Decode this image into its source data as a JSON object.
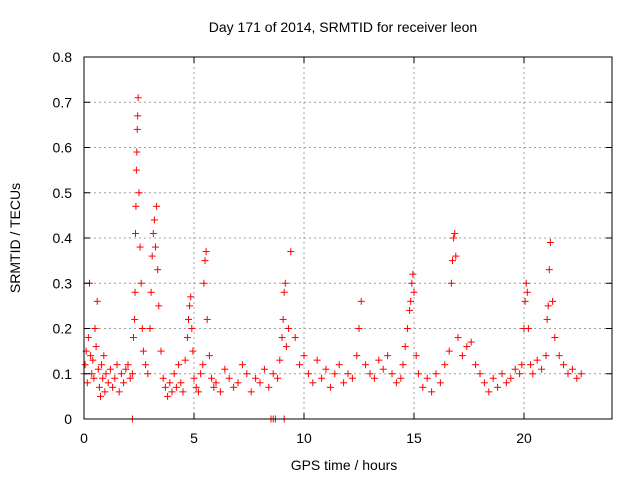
{
  "chart_data": {
    "type": "scatter",
    "title": "Day 171 of 2014, SRMTID for receiver leon",
    "xlabel": "GPS time / hours",
    "ylabel": "SRMTID / TECUs",
    "xlim": [
      0,
      24.0
    ],
    "ylim": [
      0,
      0.8
    ],
    "xticks": [
      0,
      5,
      10,
      15,
      20
    ],
    "xtick_labels": [
      "0",
      "5",
      "10",
      "15",
      "20"
    ],
    "yticks": [
      0,
      0.1,
      0.2,
      0.3,
      0.4,
      0.5,
      0.6,
      0.7,
      0.8
    ],
    "ytick_labels": [
      "0",
      "0.1",
      "0.2",
      "0.3",
      "0.4",
      "0.5",
      "0.6",
      "0.7",
      "0.8"
    ],
    "grid": true,
    "marker": "plus",
    "color": "#ff0000",
    "series": [
      {
        "name": "SRMTID",
        "x": [
          0.0,
          0.05,
          0.1,
          0.15,
          0.2,
          0.25,
          0.3,
          0.35,
          0.4,
          0.45,
          0.5,
          0.55,
          0.6,
          0.65,
          0.7,
          0.75,
          0.8,
          0.85,
          0.9,
          0.95,
          1.0,
          1.1,
          1.2,
          1.3,
          1.4,
          1.5,
          1.6,
          1.7,
          1.8,
          1.9,
          2.0,
          2.1,
          2.2,
          2.25,
          2.3,
          2.32,
          2.34,
          2.36,
          2.38,
          2.4,
          2.42,
          2.44,
          2.46,
          2.5,
          2.55,
          2.6,
          2.65,
          2.7,
          2.8,
          2.9,
          3.0,
          3.05,
          3.1,
          3.15,
          3.2,
          3.25,
          3.3,
          3.35,
          3.4,
          3.5,
          3.6,
          3.7,
          3.8,
          3.9,
          4.0,
          4.1,
          4.2,
          4.3,
          4.4,
          4.5,
          4.6,
          4.7,
          4.75,
          4.8,
          4.85,
          4.9,
          4.95,
          5.0,
          5.1,
          5.2,
          5.3,
          5.4,
          5.45,
          5.5,
          5.55,
          5.6,
          5.7,
          5.8,
          5.9,
          6.0,
          6.2,
          6.4,
          6.6,
          6.8,
          7.0,
          7.2,
          7.4,
          7.6,
          7.8,
          8.0,
          8.2,
          8.4,
          8.6,
          8.8,
          8.9,
          9.0,
          9.05,
          9.1,
          9.15,
          9.2,
          9.3,
          9.4,
          9.6,
          9.8,
          10.0,
          10.2,
          10.4,
          10.6,
          10.8,
          11.0,
          11.2,
          11.4,
          11.6,
          11.8,
          12.0,
          12.2,
          12.4,
          12.5,
          12.6,
          12.8,
          13.0,
          13.2,
          13.4,
          13.6,
          13.8,
          14.0,
          14.2,
          14.4,
          14.5,
          14.6,
          14.7,
          14.8,
          14.85,
          14.9,
          14.95,
          15.0,
          15.1,
          15.2,
          15.4,
          15.6,
          15.8,
          16.0,
          16.2,
          16.4,
          16.6,
          16.7,
          16.75,
          16.8,
          16.85,
          16.9,
          17.0,
          17.2,
          17.4,
          17.6,
          17.8,
          18.0,
          18.2,
          18.4,
          18.6,
          18.8,
          19.0,
          19.2,
          19.4,
          19.6,
          19.8,
          19.9,
          20.0,
          20.05,
          20.1,
          20.15,
          20.2,
          20.3,
          20.4,
          20.6,
          20.8,
          21.0,
          21.05,
          21.1,
          21.15,
          21.2,
          21.3,
          21.4,
          21.6,
          21.8,
          22.0,
          22.2,
          22.4,
          22.6,
          2.2,
          8.5,
          8.6,
          8.7,
          9.1
        ],
        "y": [
          0.1,
          0.12,
          0.15,
          0.08,
          0.18,
          0.3,
          0.14,
          0.1,
          0.13,
          0.09,
          0.2,
          0.16,
          0.26,
          0.11,
          0.07,
          0.05,
          0.12,
          0.09,
          0.14,
          0.06,
          0.1,
          0.08,
          0.11,
          0.07,
          0.09,
          0.12,
          0.06,
          0.1,
          0.08,
          0.11,
          0.12,
          0.09,
          0.1,
          0.18,
          0.22,
          0.28,
          0.41,
          0.47,
          0.55,
          0.59,
          0.64,
          0.67,
          0.71,
          0.5,
          0.38,
          0.3,
          0.2,
          0.15,
          0.12,
          0.1,
          0.2,
          0.28,
          0.36,
          0.41,
          0.44,
          0.38,
          0.47,
          0.33,
          0.25,
          0.15,
          0.09,
          0.07,
          0.05,
          0.08,
          0.06,
          0.1,
          0.07,
          0.12,
          0.08,
          0.06,
          0.13,
          0.18,
          0.22,
          0.25,
          0.27,
          0.2,
          0.15,
          0.09,
          0.07,
          0.06,
          0.1,
          0.12,
          0.3,
          0.35,
          0.37,
          0.22,
          0.14,
          0.09,
          0.07,
          0.08,
          0.06,
          0.11,
          0.09,
          0.07,
          0.08,
          0.12,
          0.1,
          0.06,
          0.09,
          0.08,
          0.11,
          0.07,
          0.1,
          0.09,
          0.13,
          0.18,
          0.22,
          0.28,
          0.3,
          0.16,
          0.2,
          0.37,
          0.18,
          0.12,
          0.14,
          0.1,
          0.08,
          0.13,
          0.09,
          0.11,
          0.07,
          0.1,
          0.12,
          0.08,
          0.1,
          0.09,
          0.14,
          0.2,
          0.26,
          0.12,
          0.1,
          0.09,
          0.13,
          0.11,
          0.14,
          0.1,
          0.08,
          0.09,
          0.12,
          0.16,
          0.2,
          0.24,
          0.26,
          0.3,
          0.32,
          0.28,
          0.14,
          0.1,
          0.07,
          0.09,
          0.06,
          0.1,
          0.08,
          0.12,
          0.15,
          0.3,
          0.35,
          0.4,
          0.41,
          0.36,
          0.18,
          0.14,
          0.16,
          0.17,
          0.12,
          0.1,
          0.08,
          0.06,
          0.09,
          0.07,
          0.1,
          0.08,
          0.09,
          0.11,
          0.1,
          0.12,
          0.2,
          0.26,
          0.3,
          0.28,
          0.2,
          0.12,
          0.1,
          0.13,
          0.11,
          0.14,
          0.22,
          0.25,
          0.33,
          0.39,
          0.26,
          0.18,
          0.14,
          0.12,
          0.1,
          0.11,
          0.09,
          0.1,
          0.0,
          0.0,
          0.0,
          0.0,
          0.0
        ]
      }
    ]
  }
}
